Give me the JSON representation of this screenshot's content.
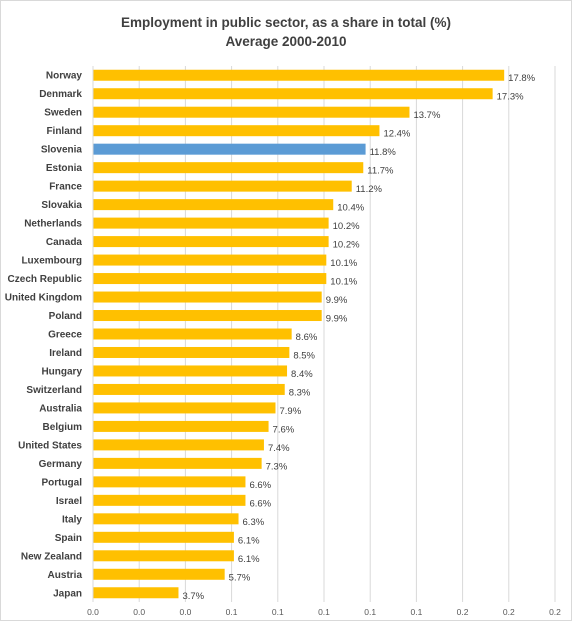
{
  "chart_data": {
    "type": "bar",
    "orientation": "horizontal",
    "title": "Employment in public sector, as a share in total (%)",
    "subtitle": "Average 2000-2010",
    "categories": [
      "Norway",
      "Denmark",
      "Sweden",
      "Finland",
      "Slovenia",
      "Estonia",
      "France",
      "Slovakia",
      "Netherlands",
      "Canada",
      "Luxembourg",
      "Czech Republic",
      "United Kingdom",
      "Poland",
      "Greece",
      "Ireland",
      "Hungary",
      "Switzerland",
      "Australia",
      "Belgium",
      "United States",
      "Germany",
      "Portugal",
      "Israel",
      "Italy",
      "Spain",
      "New Zealand",
      "Austria",
      "Japan"
    ],
    "values": [
      17.8,
      17.3,
      13.7,
      12.4,
      11.8,
      11.7,
      11.2,
      10.4,
      10.2,
      10.2,
      10.1,
      10.1,
      9.9,
      9.9,
      8.6,
      8.5,
      8.4,
      8.3,
      7.9,
      7.6,
      7.4,
      7.3,
      6.6,
      6.6,
      6.3,
      6.1,
      6.1,
      5.7,
      3.7
    ],
    "data_labels": [
      "17.8%",
      "17.3%",
      "13.7%",
      "12.4%",
      "11.8%",
      "11.7%",
      "11.2%",
      "10.4%",
      "10.2%",
      "10.2%",
      "10.1%",
      "10.1%",
      "9.9%",
      "9.9%",
      "8.6%",
      "8.5%",
      "8.4%",
      "8.3%",
      "7.9%",
      "7.6%",
      "7.4%",
      "7.3%",
      "6.6%",
      "6.6%",
      "6.3%",
      "6.1%",
      "6.1%",
      "5.7%",
      "3.7%"
    ],
    "highlight": "Slovenia",
    "x_tick_labels": [
      "0.0",
      "0.0",
      "0.0",
      "0.1",
      "0.1",
      "0.1",
      "0.1",
      "0.1",
      "0.2",
      "0.2",
      "0.2"
    ],
    "xlim": [
      0,
      20
    ],
    "grid": "vertical",
    "legend": "none",
    "colors": {
      "bar": "#ffc000",
      "highlight": "#5b9bd5",
      "grid": "#d9d9d9",
      "text": "#404040"
    }
  }
}
